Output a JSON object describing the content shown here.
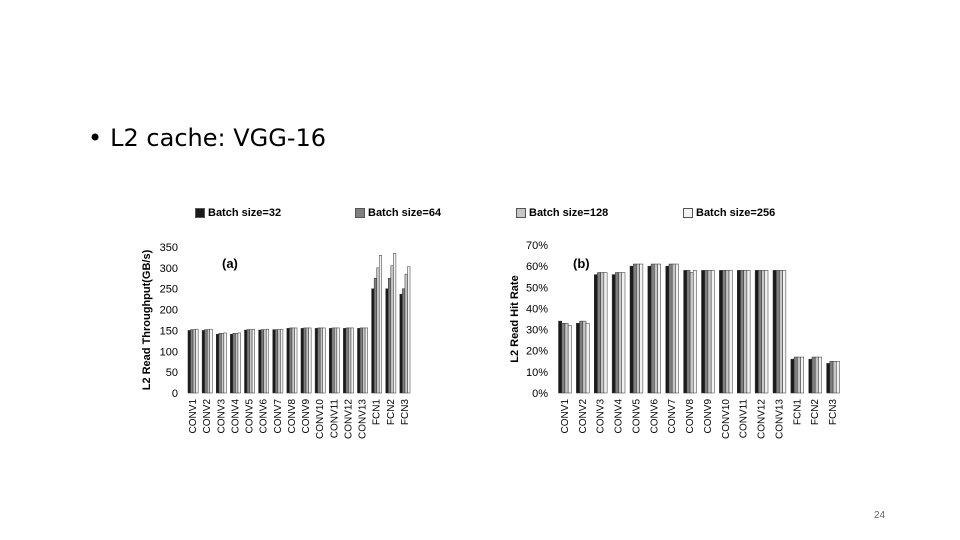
{
  "slide": {
    "bullet": "•",
    "title": "L2 cache: VGG-16",
    "page_number": "24"
  },
  "colors": {
    "batch32": "#1a1a1a",
    "batch64": "#7f7f7f",
    "batch128": "#c6c6c6",
    "batch256": "#f2f2f2",
    "outline": "#303030"
  },
  "legend": [
    "Batch size=32",
    "Batch size=64",
    "Batch size=128",
    "Batch size=256"
  ],
  "chart_data": [
    {
      "type": "bar",
      "annotation": "(a)",
      "ylabel": "L2 Read Throughput(GB/s)",
      "xlabel": "",
      "ylim": [
        0,
        350
      ],
      "yticks": [
        "0",
        "50",
        "100",
        "150",
        "200",
        "250",
        "300",
        "350"
      ],
      "grid": false,
      "legend_position": "top",
      "categories": [
        "CONV1",
        "CONV2",
        "CONV3",
        "CONV4",
        "CONV5",
        "CONV6",
        "CONV7",
        "CONV8",
        "CONV9",
        "CONV10",
        "CONV11",
        "CONV12",
        "CONV13",
        "FCN1",
        "FCN2",
        "FCN3"
      ],
      "series": [
        {
          "name": "Batch size=32",
          "values": [
            150,
            150,
            141,
            141,
            151,
            151,
            152,
            155,
            155,
            155,
            155,
            155,
            155,
            250,
            250,
            237
          ]
        },
        {
          "name": "Batch size=64",
          "values": [
            152,
            152,
            143,
            143,
            152,
            152,
            152,
            156,
            156,
            156,
            156,
            156,
            156,
            275,
            275,
            250
          ]
        },
        {
          "name": "Batch size=128",
          "values": [
            152,
            152,
            143,
            143,
            152,
            152,
            152,
            156,
            156,
            156,
            156,
            156,
            156,
            300,
            305,
            285
          ]
        },
        {
          "name": "Batch size=256",
          "values": [
            153,
            153,
            144,
            144,
            153,
            153,
            153,
            156,
            156,
            156,
            156,
            156,
            156,
            330,
            335,
            303
          ]
        }
      ]
    },
    {
      "type": "bar",
      "annotation": "(b)",
      "ylabel": "L2 Read Hit Rate",
      "xlabel": "",
      "ylim": [
        0,
        70
      ],
      "yticks": [
        "0%",
        "10%",
        "20%",
        "30%",
        "40%",
        "50%",
        "60%",
        "70%"
      ],
      "grid": false,
      "legend_position": "top",
      "categories": [
        "CONV1",
        "CONV2",
        "CONV3",
        "CONV4",
        "CONV5",
        "CONV6",
        "CONV7",
        "CONV8",
        "CONV9",
        "CONV10",
        "CONV11",
        "CONV12",
        "CONV13",
        "FCN1",
        "FCN2",
        "FCN3"
      ],
      "series": [
        {
          "name": "Batch size=32",
          "values": [
            34,
            33,
            56,
            56,
            60,
            60,
            60,
            58,
            58,
            58,
            58,
            58,
            58,
            16,
            16,
            14
          ]
        },
        {
          "name": "Batch size=64",
          "values": [
            33,
            34,
            57,
            57,
            61,
            61,
            61,
            58,
            58,
            58,
            58,
            58,
            58,
            17,
            17,
            15
          ]
        },
        {
          "name": "Batch size=128",
          "values": [
            33,
            34,
            57,
            57,
            61,
            61,
            61,
            57,
            58,
            58,
            58,
            58,
            58,
            17,
            17,
            15
          ]
        },
        {
          "name": "Batch size=256",
          "values": [
            32,
            33,
            57,
            57,
            61,
            61,
            61,
            58,
            58,
            58,
            58,
            58,
            58,
            17,
            17,
            15
          ]
        }
      ]
    }
  ]
}
